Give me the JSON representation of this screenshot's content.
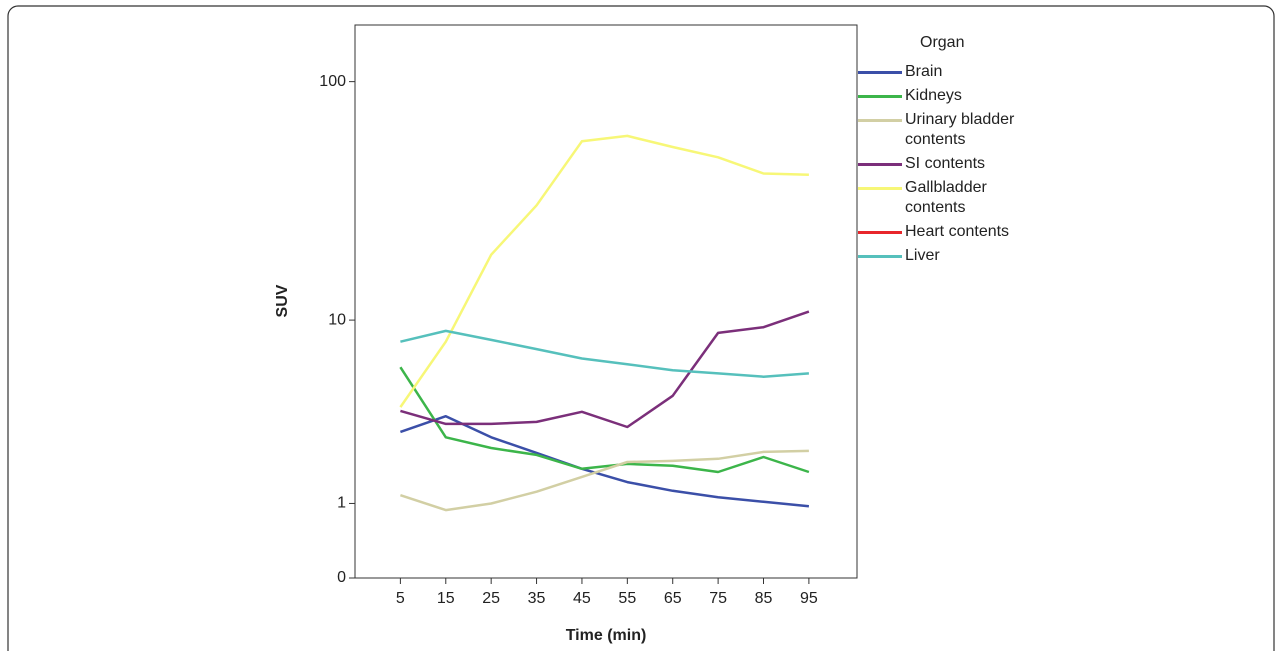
{
  "chart_data": {
    "type": "line",
    "x_label": "Time (min)",
    "y_label": "SUV",
    "legend_title": "Organ",
    "legend_position": "right",
    "yscale": "log1p",
    "x": [
      5,
      15,
      25,
      35,
      45,
      55,
      65,
      75,
      85,
      95
    ],
    "xlim": [
      -5,
      105.6
    ],
    "xticks": [
      5,
      15,
      25,
      35,
      45,
      55,
      65,
      75,
      85,
      95
    ],
    "ylim": [
      0,
      170
    ],
    "yticks": [
      0,
      1,
      10,
      100
    ],
    "series": [
      {
        "name": "Brain",
        "color": "#3b4fa8",
        "values": [
          2.89,
          3.5,
          2.7,
          2.2,
          1.76,
          1.44,
          1.25,
          1.12,
          1.03,
          0.95
        ]
      },
      {
        "name": "Kidneys",
        "color": "#3cb54a",
        "values": [
          6.1,
          2.7,
          2.35,
          2.14,
          1.76,
          1.89,
          1.84,
          1.68,
          2.08,
          1.68
        ]
      },
      {
        "name": "Urinary bladder contents",
        "color": "#d2cfa4",
        "values": [
          1.16,
          0.88,
          1.0,
          1.23,
          1.56,
          1.94,
          1.97,
          2.03,
          2.23,
          2.26
        ]
      },
      {
        "name": "SI contents",
        "color": "#7b2f7a",
        "values": [
          3.73,
          3.19,
          3.19,
          3.27,
          3.69,
          3.07,
          4.44,
          8.77,
          9.3,
          10.9
        ]
      },
      {
        "name": "Gallbladder contents",
        "color": "#f7f777",
        "values": [
          3.9,
          8.0,
          19.2,
          31,
          57,
          60,
          54,
          49,
          42,
          41.5
        ]
      },
      {
        "name": "Heart contents",
        "color": "#e8262b",
        "values": [
          null,
          null,
          null,
          null,
          null,
          null,
          null,
          null,
          null,
          null
        ]
      },
      {
        "name": "Liver",
        "color": "#56c0bc",
        "values": [
          8.0,
          8.95,
          8.15,
          7.4,
          6.7,
          6.3,
          5.9,
          5.7,
          5.5,
          5.7
        ]
      }
    ]
  }
}
